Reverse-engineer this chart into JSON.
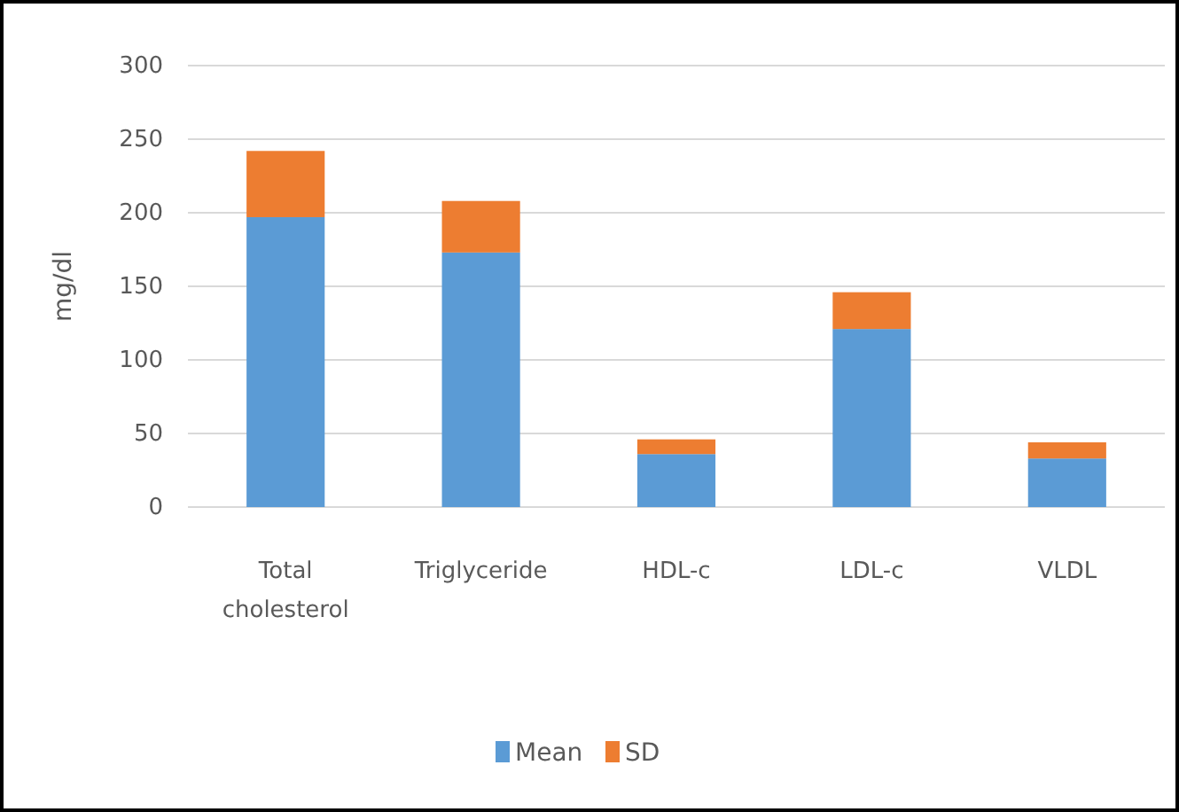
{
  "chart_data": {
    "type": "bar",
    "stacked": true,
    "ylabel": "mg/dl",
    "categories": [
      "Total cholesterol",
      "Triglyceride",
      "HDL-c",
      "LDL-c",
      "VLDL"
    ],
    "series": [
      {
        "name": "Mean",
        "color": "#5b9bd5",
        "values": [
          197,
          173,
          36,
          121,
          33
        ]
      },
      {
        "name": "SD",
        "color": "#ed7d31",
        "values": [
          45,
          35,
          10,
          25,
          11
        ]
      }
    ],
    "ylim": [
      0,
      300
    ],
    "yticks": [
      0,
      50,
      100,
      150,
      200,
      250,
      300
    ],
    "grid": "y",
    "legend": "bottom"
  }
}
